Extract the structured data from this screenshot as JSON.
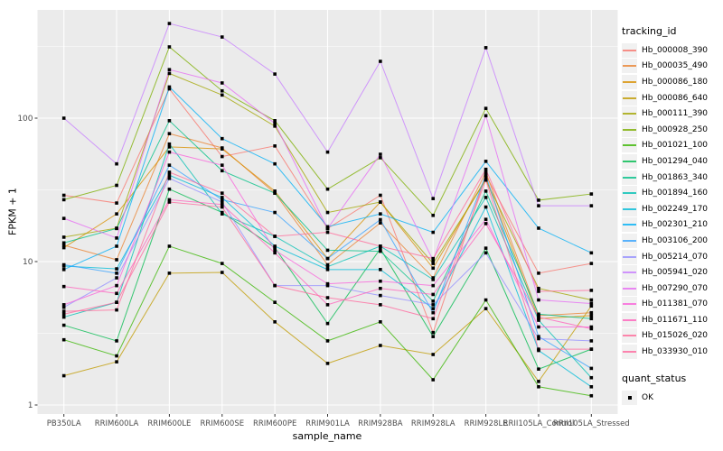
{
  "figure": {
    "x_axis_title": "sample_name",
    "y_axis_title": "FPKM + 1",
    "colors": {
      "panel_bg": "#EBEBEB",
      "grid": "#FFFFFF",
      "axis_text": "#4D4D4D",
      "tick_mark": "#333333",
      "point": "#000000",
      "legend_key_bg": "#F1F1F1"
    },
    "legend": {
      "tracking_title": "tracking_id",
      "quant_title": "quant_status",
      "quant_items": [
        {
          "label": "OK",
          "marker": "black-square"
        }
      ]
    }
  },
  "chart_data": {
    "type": "line",
    "title": "",
    "xlabel": "sample_name",
    "ylabel": "FPKM + 1",
    "y_scale": "log10",
    "y_ticks": [
      "1",
      "10",
      "100"
    ],
    "y_tick_values": [
      1,
      10,
      100
    ],
    "y_minor_values": [
      3.162,
      31.62,
      316.2
    ],
    "ylim": [
      0.87,
      570
    ],
    "grid": "on",
    "legend_position": "right",
    "marker": "black-square",
    "categories": [
      "PB350LA",
      "RRIM600LA",
      "RRIM600LE",
      "RRIM600SE",
      "RRIM600PE",
      "RRIM901LA",
      "RRIM928BA",
      "RRIM928LA",
      "RRIM928LE",
      "RRII105LA_Control",
      "RRII105LA_Stressed"
    ],
    "series": [
      {
        "name": "Hb_000008_390",
        "color": "#F8766D",
        "values": [
          29,
          25.6,
          160,
          54,
          64,
          17,
          29,
          3.2,
          40,
          8.3,
          9.7
        ]
      },
      {
        "name": "Hb_000035_490",
        "color": "#EA8331",
        "values": [
          13,
          10.3,
          78,
          62,
          30,
          9.5,
          18.6,
          7.7,
          42,
          4.2,
          4.4
        ]
      },
      {
        "name": "Hb_000086_180",
        "color": "#D89000",
        "values": [
          12.5,
          21.5,
          63,
          61,
          31,
          10.5,
          26,
          9.0,
          38,
          4.0,
          4.2
        ]
      },
      {
        "name": "Hb_000086_640",
        "color": "#C09B00",
        "values": [
          1.6,
          2.0,
          8.3,
          8.4,
          3.8,
          1.95,
          2.6,
          2.25,
          4.7,
          1.46,
          4.9
        ]
      },
      {
        "name": "Hb_000111_390",
        "color": "#A3A500",
        "values": [
          14.8,
          17.1,
          205,
          145,
          88,
          22,
          26,
          9.7,
          37,
          6.5,
          5.4
        ]
      },
      {
        "name": "Hb_000928_250",
        "color": "#7CAE00",
        "values": [
          27,
          34,
          314,
          155,
          96,
          32,
          53,
          21,
          117,
          26.8,
          29.6
        ]
      },
      {
        "name": "Hb_001021_100",
        "color": "#39B600",
        "values": [
          2.85,
          2.2,
          12.8,
          9.7,
          5.2,
          2.8,
          3.8,
          1.5,
          5.4,
          1.34,
          1.16
        ]
      },
      {
        "name": "Hb_001294_040",
        "color": "#00BB4E",
        "values": [
          3.6,
          2.8,
          32,
          22,
          12.5,
          3.7,
          12.3,
          3.0,
          12.4,
          1.78,
          2.45
        ]
      },
      {
        "name": "Hb_001863_340",
        "color": "#00C087",
        "values": [
          13.5,
          17.0,
          96,
          43,
          30,
          12,
          11.8,
          5.3,
          31,
          4.3,
          4.0
        ]
      },
      {
        "name": "Hb_001894_160",
        "color": "#00C0B4",
        "values": [
          4.1,
          5.2,
          66,
          21.5,
          15,
          9.2,
          12.8,
          7.5,
          28,
          3.9,
          1.55
        ]
      },
      {
        "name": "Hb_002249_170",
        "color": "#00BCD8",
        "values": [
          9.3,
          8.9,
          40,
          28,
          12.8,
          8.8,
          8.8,
          4.7,
          24,
          2.4,
          1.34
        ]
      },
      {
        "name": "Hb_002301_210",
        "color": "#00B0F6",
        "values": [
          8.8,
          12.8,
          165,
          72,
          48,
          17.5,
          21.5,
          16,
          50,
          17.1,
          11.5
        ]
      },
      {
        "name": "Hb_003106_200",
        "color": "#35A2FF",
        "values": [
          9.5,
          8.3,
          47,
          27,
          22,
          10.5,
          19.6,
          4.4,
          40,
          3.0,
          1.8
        ]
      },
      {
        "name": "Hb_005214_070",
        "color": "#9590FF",
        "values": [
          4.8,
          7.7,
          38,
          26,
          6.8,
          6.8,
          5.8,
          5.0,
          11.5,
          2.9,
          2.8
        ]
      },
      {
        "name": "Hb_005941_020",
        "color": "#C77CFF",
        "values": [
          100,
          48,
          457,
          368,
          203,
          58,
          249,
          27.5,
          310,
          24.5,
          24.5
        ]
      },
      {
        "name": "Hb_007290_070",
        "color": "#E76BF3",
        "values": [
          20,
          14.6,
          218,
          176,
          92,
          17,
          56,
          10.2,
          104,
          5.4,
          5.1
        ]
      },
      {
        "name": "Hb_011381_070",
        "color": "#FA62DB",
        "values": [
          5.0,
          6.8,
          58,
          47,
          12,
          7.0,
          7.3,
          6.8,
          19.7,
          3.5,
          3.5
        ]
      },
      {
        "name": "Hb_011671_110",
        "color": "#FF62BC",
        "values": [
          6.7,
          6.0,
          27,
          25,
          11.5,
          5.0,
          6.5,
          5.9,
          18.4,
          4.1,
          3.4
        ]
      },
      {
        "name": "Hb_015026_020",
        "color": "#FF6A9A",
        "values": [
          4.5,
          4.6,
          42,
          30,
          15,
          16,
          12.8,
          10.5,
          44,
          6.2,
          6.3
        ]
      },
      {
        "name": "Hb_033930_010",
        "color": "#FF689E",
        "values": [
          4.3,
          5.2,
          26,
          24,
          6.8,
          5.6,
          5.0,
          4.0,
          37,
          2.45,
          2.45
        ]
      }
    ]
  }
}
